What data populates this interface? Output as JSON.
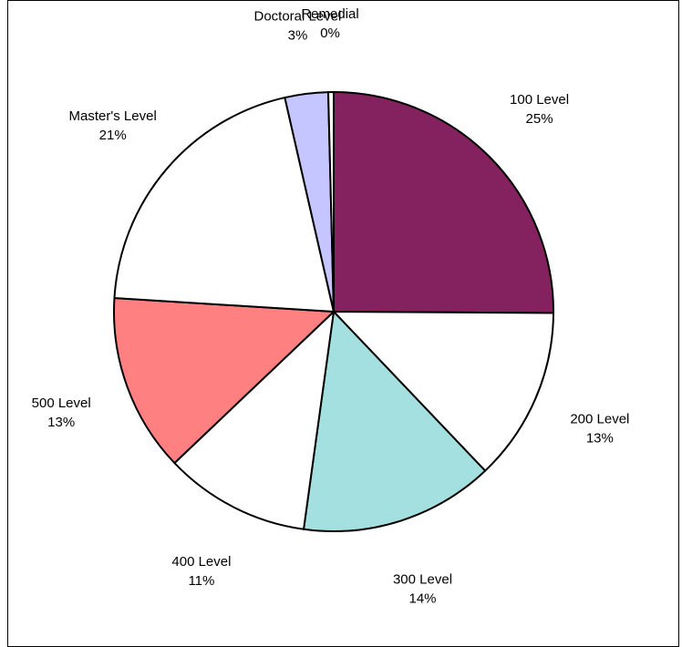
{
  "chart_data": {
    "type": "pie",
    "title": "",
    "slices": [
      {
        "label": "100 Level",
        "pct_label": "25%",
        "value": 25.3,
        "color": "#84215F"
      },
      {
        "label": "200 Level",
        "pct_label": "13%",
        "value": 12.9,
        "color": "#FFFFFF"
      },
      {
        "label": "300 Level",
        "pct_label": "14%",
        "value": 14.4,
        "color": "#A5E0E0"
      },
      {
        "label": "400 Level",
        "pct_label": "11%",
        "value": 10.8,
        "color": "#FFFFFF"
      },
      {
        "label": "500 Level",
        "pct_label": "13%",
        "value": 13.2,
        "color": "#FF8080"
      },
      {
        "label": "Master's Level",
        "pct_label": "21%",
        "value": 20.6,
        "color": "#FFFFFF"
      },
      {
        "label": "Doctoral Level",
        "pct_label": "3%",
        "value": 3.2,
        "color": "#C5C5FF"
      },
      {
        "label": "Remedial",
        "pct_label": "0%",
        "value": 0.4,
        "color": "#FFFFFF"
      }
    ],
    "legend": "none",
    "label_position": "outside"
  }
}
